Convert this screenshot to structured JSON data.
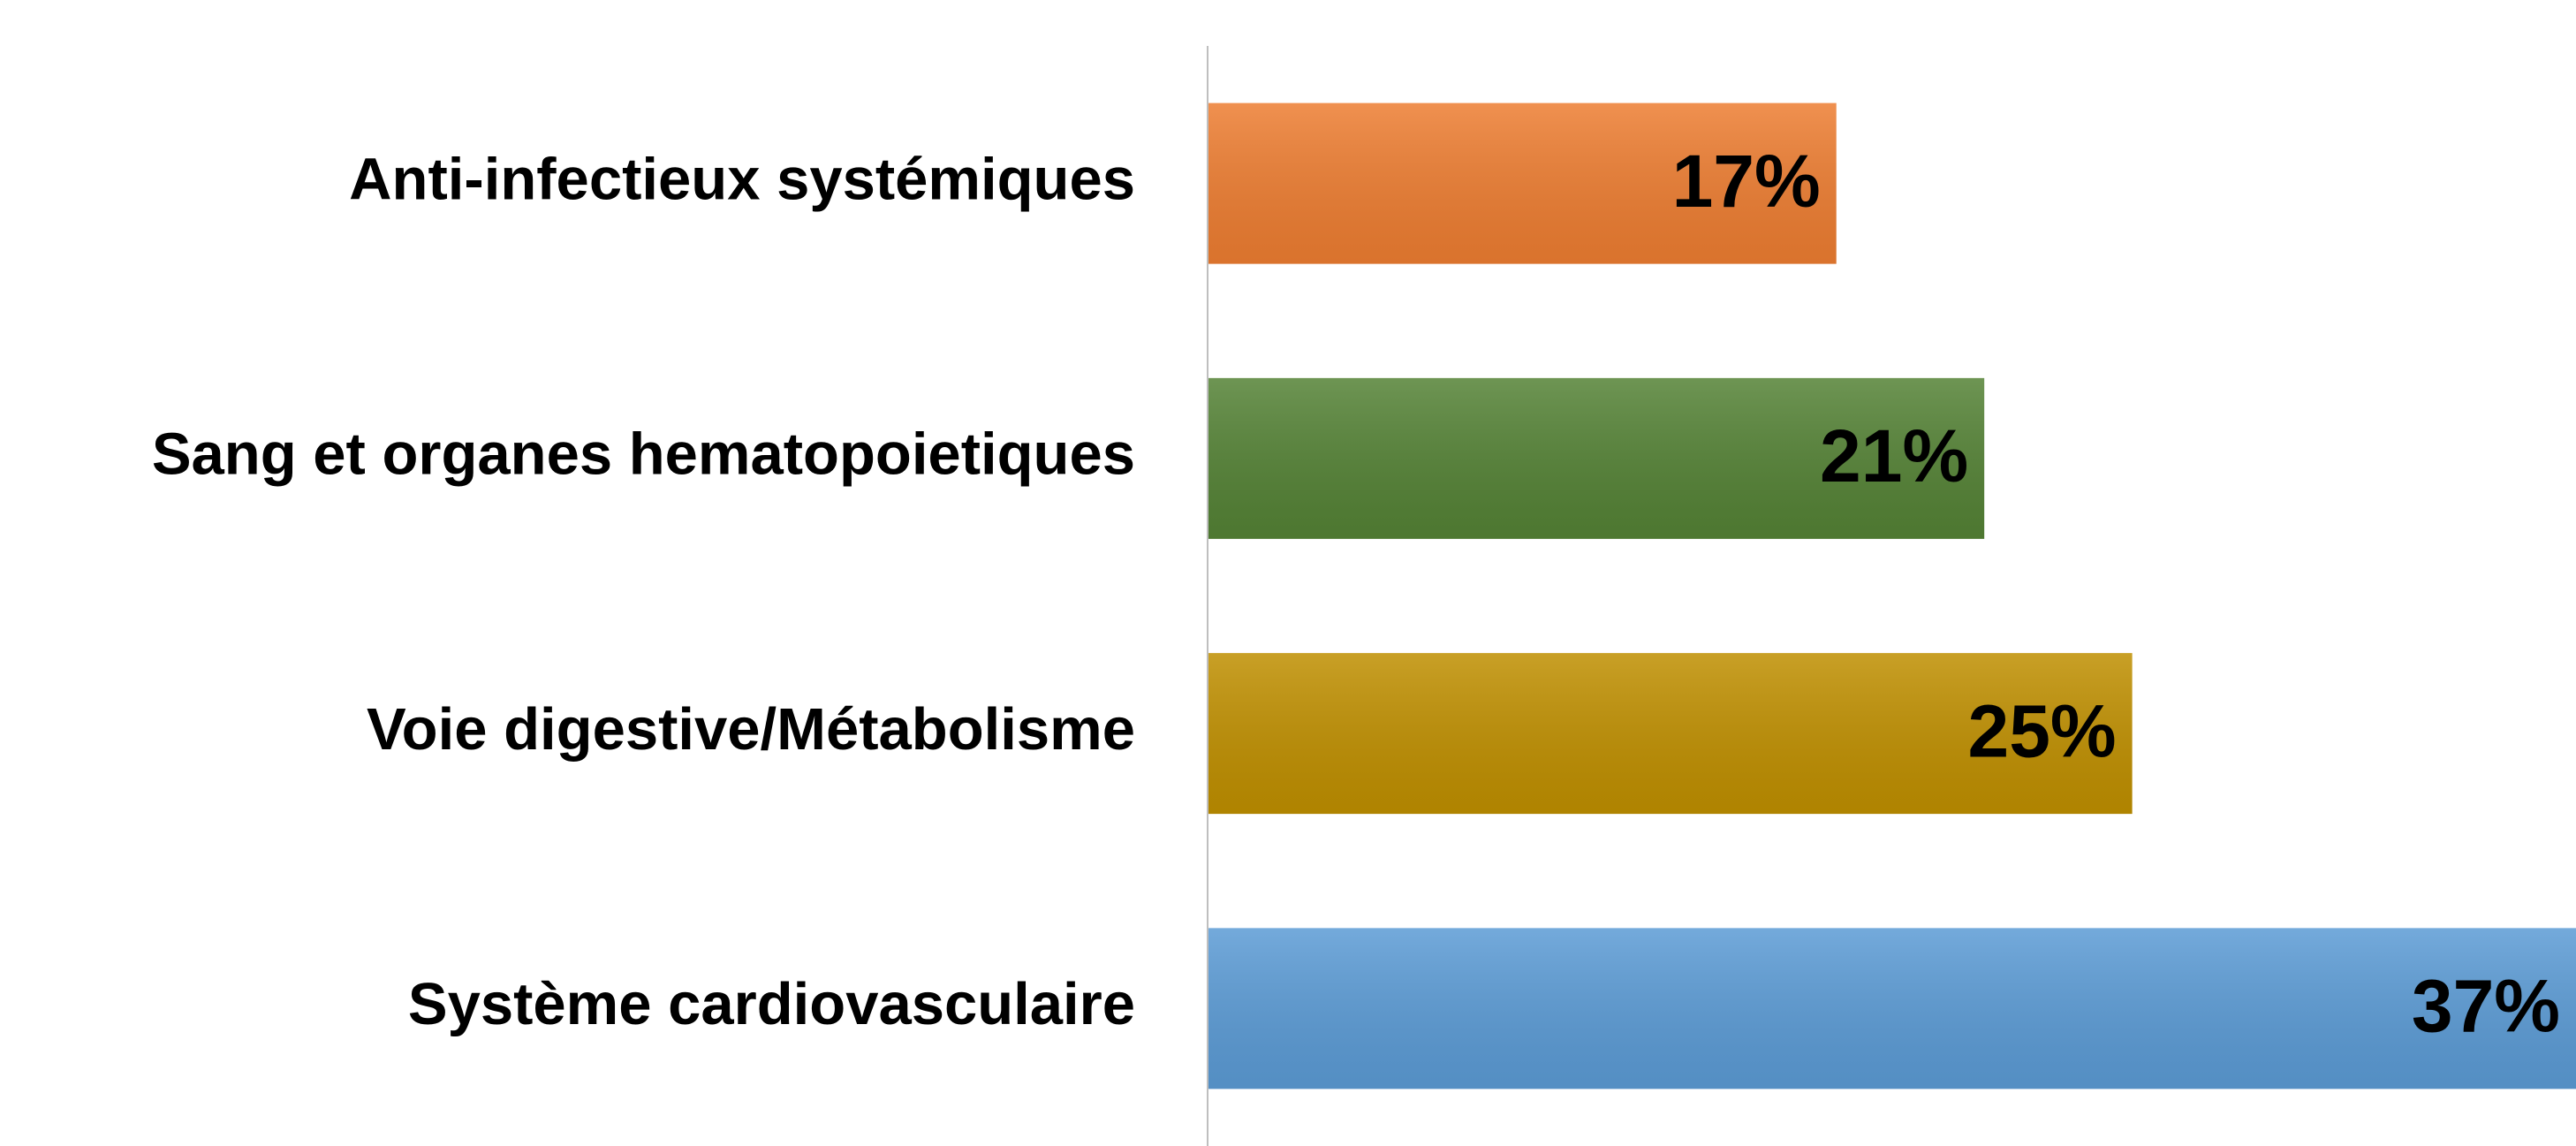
{
  "chart_data": {
    "type": "bar",
    "orientation": "horizontal",
    "categories": [
      "Anti-infectieux systémiques",
      "Sang et organes hematopoietiques",
      "Voie digestive/Métabolisme",
      "Système cardiovasculaire"
    ],
    "values": [
      17,
      21,
      25,
      37
    ],
    "value_labels": [
      "17%",
      "21%",
      "25%",
      "37%"
    ],
    "colors": [
      "#ed7d31",
      "#548235",
      "#bf8f00",
      "#5b9bd5"
    ]
  }
}
